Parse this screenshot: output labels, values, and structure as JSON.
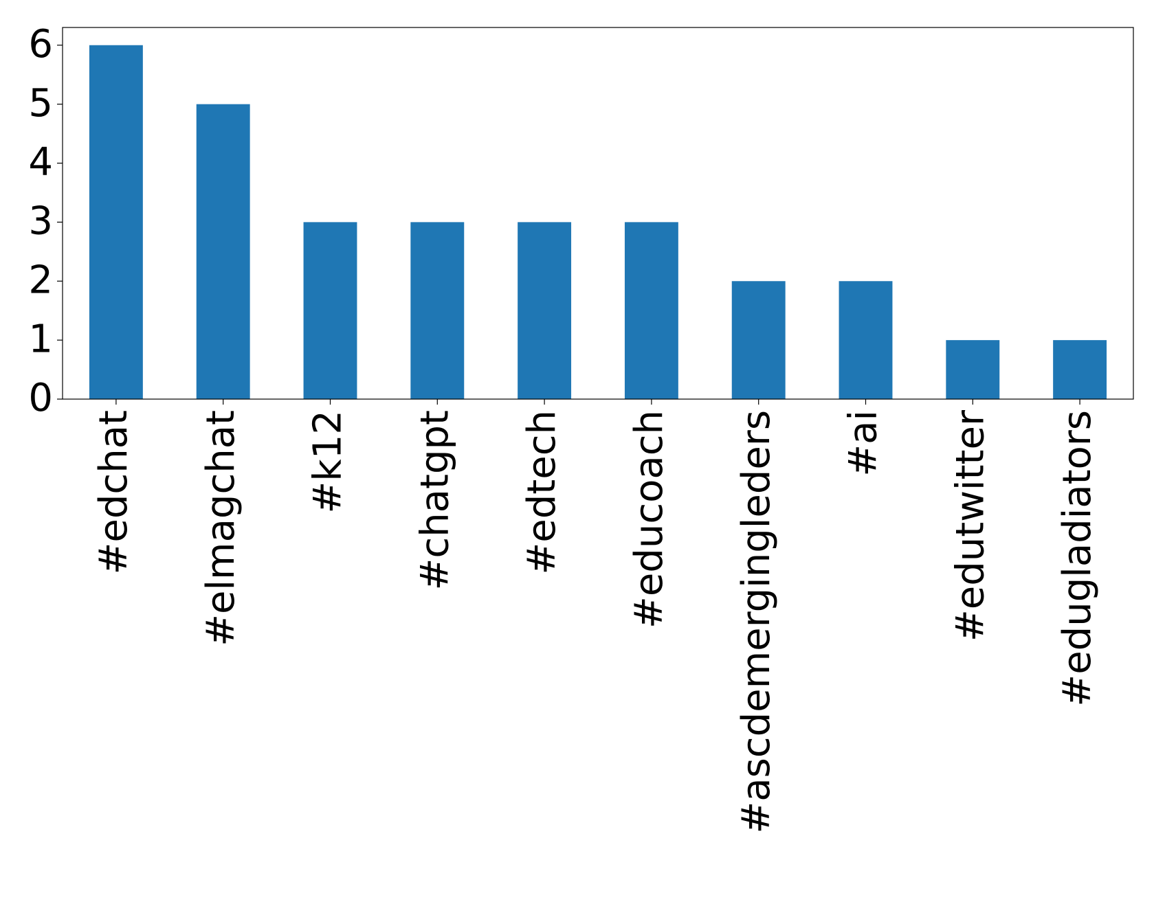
{
  "chart_data": {
    "type": "bar",
    "categories": [
      "#edchat",
      "#elmagchat",
      "#k12",
      "#chatgpt",
      "#edtech",
      "#educoach",
      "#ascdemergingleders",
      "#ai",
      "#edutwitter",
      "#edugladiators"
    ],
    "values": [
      6,
      5,
      3,
      3,
      3,
      3,
      2,
      2,
      1,
      1
    ],
    "color": "#1f77b4",
    "ylim": [
      0,
      6.3
    ],
    "yticks": [
      0,
      1,
      2,
      3,
      4,
      5,
      6
    ],
    "grid": false
  }
}
